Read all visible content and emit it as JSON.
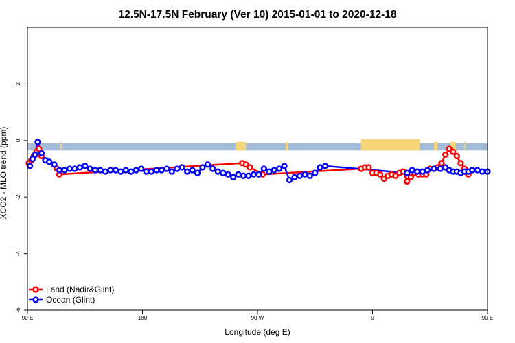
{
  "chart_data": {
    "type": "line",
    "title": "12.5N-17.5N February (Ver 10)   2015-01-01 to 2020-12-18",
    "xlabel": "Longitude (deg E)",
    "ylabel": "XCO2 - MLO trend (ppm)",
    "xlim": [
      90,
      450
    ],
    "ylim": [
      -6,
      4
    ],
    "x_ticks": [
      {
        "value": 90,
        "label": "90 E"
      },
      {
        "value": 180,
        "label": "180"
      },
      {
        "value": 270,
        "label": "90 W"
      },
      {
        "value": 360,
        "label": "0"
      },
      {
        "value": 450,
        "label": "90 E"
      },
      {
        "value": 540,
        "label": "180"
      }
    ],
    "y_ticks": [
      {
        "value": -6,
        "label": "-6"
      },
      {
        "value": -4,
        "label": "-4"
      },
      {
        "value": -2,
        "label": "-2"
      },
      {
        "value": 0,
        "label": "0"
      },
      {
        "value": 2,
        "label": "2"
      }
    ],
    "grid": false,
    "legend_position": "bottom-left",
    "map_band": {
      "y_range": [
        -0.35,
        -0.1
      ],
      "ocean_color": "#a4bcd9",
      "land_color": "#f5d77a",
      "land_segments": [
        [
          97,
          99
        ],
        [
          116,
          117
        ],
        [
          253,
          261
        ],
        [
          292,
          294
        ],
        [
          351,
          397
        ],
        [
          408,
          411
        ],
        [
          421,
          425
        ],
        [
          432,
          433
        ]
      ]
    },
    "series": [
      {
        "name": "Land (Nadir&Glint)",
        "color": "#ff0000",
        "x": [
          91,
          93,
          95,
          97,
          99,
          101,
          113,
          115,
          258,
          261,
          264,
          274,
          351,
          354,
          357,
          360,
          363,
          366,
          369,
          372,
          375,
          378,
          381,
          384,
          387,
          390,
          393,
          396,
          399,
          402,
          405,
          408,
          411,
          414,
          417,
          420,
          423,
          426,
          429,
          432,
          435
        ],
        "values": [
          -0.8,
          -0.7,
          -0.55,
          -0.4,
          -0.3,
          -0.55,
          -1.0,
          -1.2,
          -0.8,
          -0.85,
          -0.95,
          -1.2,
          -1.0,
          -0.95,
          -0.95,
          -1.15,
          -1.15,
          -1.2,
          -1.35,
          -1.25,
          -1.2,
          -1.25,
          -1.15,
          -1.1,
          -1.45,
          -1.3,
          -1.15,
          -1.2,
          -1.2,
          -1.2,
          -1.0,
          -1.0,
          -0.95,
          -0.8,
          -0.5,
          -0.3,
          -0.4,
          -0.55,
          -0.8,
          -1.0,
          -1.2
        ]
      },
      {
        "name": "Ocean (Glint)",
        "color": "#0000ff",
        "x": [
          92,
          94,
          96,
          98,
          101,
          104,
          107,
          111,
          115,
          119,
          123,
          127,
          131,
          135,
          139,
          143,
          147,
          151,
          155,
          159,
          163,
          167,
          171,
          175,
          179,
          183,
          187,
          191,
          195,
          199,
          203,
          207,
          211,
          215,
          219,
          223,
          227,
          231,
          235,
          239,
          243,
          247,
          251,
          255,
          259,
          263,
          267,
          271,
          275,
          279,
          283,
          287,
          291,
          295,
          299,
          303,
          307,
          311,
          315,
          319,
          323,
          387,
          391,
          395,
          399,
          403,
          408,
          413,
          417,
          420,
          423,
          426,
          429,
          432,
          435,
          438,
          442,
          446,
          450
        ],
        "values": [
          -0.9,
          -0.65,
          -0.5,
          -0.05,
          -0.45,
          -0.7,
          -0.75,
          -0.85,
          -1.05,
          -1.05,
          -1.0,
          -1.0,
          -0.95,
          -0.9,
          -1.0,
          -1.05,
          -1.05,
          -1.1,
          -1.05,
          -1.05,
          -1.1,
          -1.05,
          -1.1,
          -1.05,
          -1.0,
          -1.1,
          -1.1,
          -1.05,
          -1.05,
          -1.0,
          -1.1,
          -1.0,
          -0.95,
          -1.1,
          -1.05,
          -1.15,
          -0.95,
          -0.85,
          -1.0,
          -1.1,
          -1.15,
          -1.2,
          -1.3,
          -1.2,
          -1.25,
          -1.25,
          -1.2,
          -1.2,
          -1.0,
          -1.1,
          -1.05,
          -1.0,
          -0.9,
          -1.4,
          -1.3,
          -1.25,
          -1.2,
          -1.25,
          -1.15,
          -0.95,
          -0.9,
          -1.15,
          -1.05,
          -1.1,
          -1.1,
          -1.05,
          -1.0,
          -1.0,
          -0.95,
          -1.05,
          -1.1,
          -1.1,
          -1.15,
          -1.1,
          -1.1,
          -1.05,
          -1.05,
          -1.1,
          -1.1
        ]
      }
    ]
  }
}
